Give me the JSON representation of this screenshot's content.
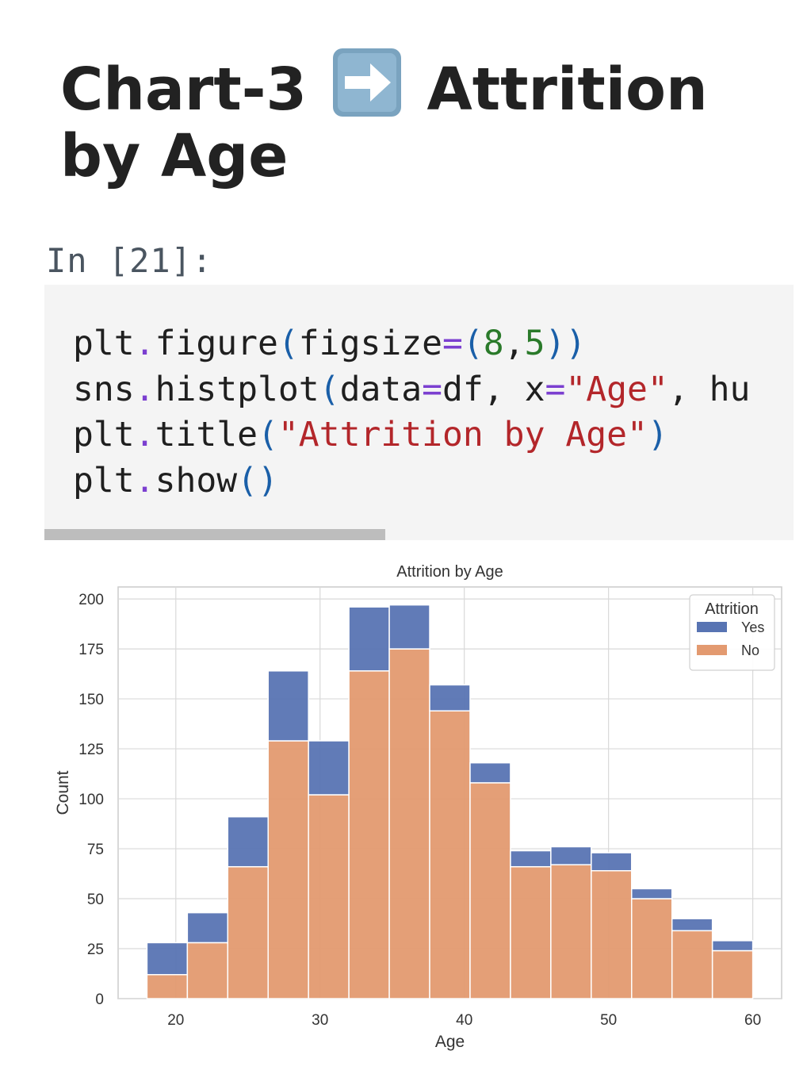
{
  "heading": {
    "prefix": "Chart-3",
    "icon": "right-arrow-emoji-icon",
    "title_word": "Attrition",
    "line2": "by Age"
  },
  "cell": {
    "prompt": "In [21]:",
    "code_lines": [
      [
        {
          "t": "plt",
          "c": ""
        },
        {
          "t": ".",
          "c": "op"
        },
        {
          "t": "figure",
          "c": ""
        },
        {
          "t": "(",
          "c": "paren"
        },
        {
          "t": "figsize",
          "c": ""
        },
        {
          "t": "=",
          "c": "op"
        },
        {
          "t": "(",
          "c": "paren"
        },
        {
          "t": "8",
          "c": "num"
        },
        {
          "t": ",",
          "c": ""
        },
        {
          "t": "5",
          "c": "num"
        },
        {
          "t": "))",
          "c": "paren"
        }
      ],
      [
        {
          "t": "sns",
          "c": ""
        },
        {
          "t": ".",
          "c": "op"
        },
        {
          "t": "histplot",
          "c": ""
        },
        {
          "t": "(",
          "c": "paren"
        },
        {
          "t": "data",
          "c": ""
        },
        {
          "t": "=",
          "c": "op"
        },
        {
          "t": "df, x",
          "c": ""
        },
        {
          "t": "=",
          "c": "op"
        },
        {
          "t": "\"Age\"",
          "c": "str"
        },
        {
          "t": ", hu",
          "c": ""
        }
      ],
      [
        {
          "t": "plt",
          "c": ""
        },
        {
          "t": ".",
          "c": "op"
        },
        {
          "t": "title",
          "c": ""
        },
        {
          "t": "(",
          "c": "paren"
        },
        {
          "t": "\"Attrition by Age\"",
          "c": "str"
        },
        {
          "t": ")",
          "c": "paren"
        }
      ],
      [
        {
          "t": "plt",
          "c": ""
        },
        {
          "t": ".",
          "c": "op"
        },
        {
          "t": "show",
          "c": ""
        },
        {
          "t": "()",
          "c": "paren"
        }
      ]
    ]
  },
  "colors": {
    "yes": "#5874b3",
    "no": "#e39a70",
    "grid": "#d9d9d9",
    "axes_border": "#cccccc"
  },
  "chart_data": {
    "type": "bar",
    "stacked": true,
    "title": "Attrition by Age",
    "xlabel": "Age",
    "ylabel": "Count",
    "xlim": [
      16,
      62
    ],
    "ylim": [
      0,
      206
    ],
    "xticks": [
      20,
      30,
      40,
      50,
      60
    ],
    "yticks": [
      0,
      25,
      50,
      75,
      100,
      125,
      150,
      175,
      200
    ],
    "grid": true,
    "legend": {
      "title": "Attrition",
      "position": "top-right"
    },
    "bin_edges": [
      18,
      20.8,
      23.6,
      26.4,
      29.2,
      32.0,
      34.8,
      37.6,
      40.4,
      43.2,
      46.0,
      48.8,
      51.6,
      54.4,
      57.2,
      60
    ],
    "series": [
      {
        "name": "Yes",
        "values": [
          16,
          15,
          25,
          35,
          27,
          32,
          22,
          13,
          10,
          8,
          9,
          9,
          5,
          6,
          5
        ]
      },
      {
        "name": "No",
        "values": [
          12,
          28,
          66,
          129,
          102,
          164,
          175,
          144,
          108,
          66,
          67,
          64,
          50,
          34,
          24
        ]
      }
    ]
  }
}
